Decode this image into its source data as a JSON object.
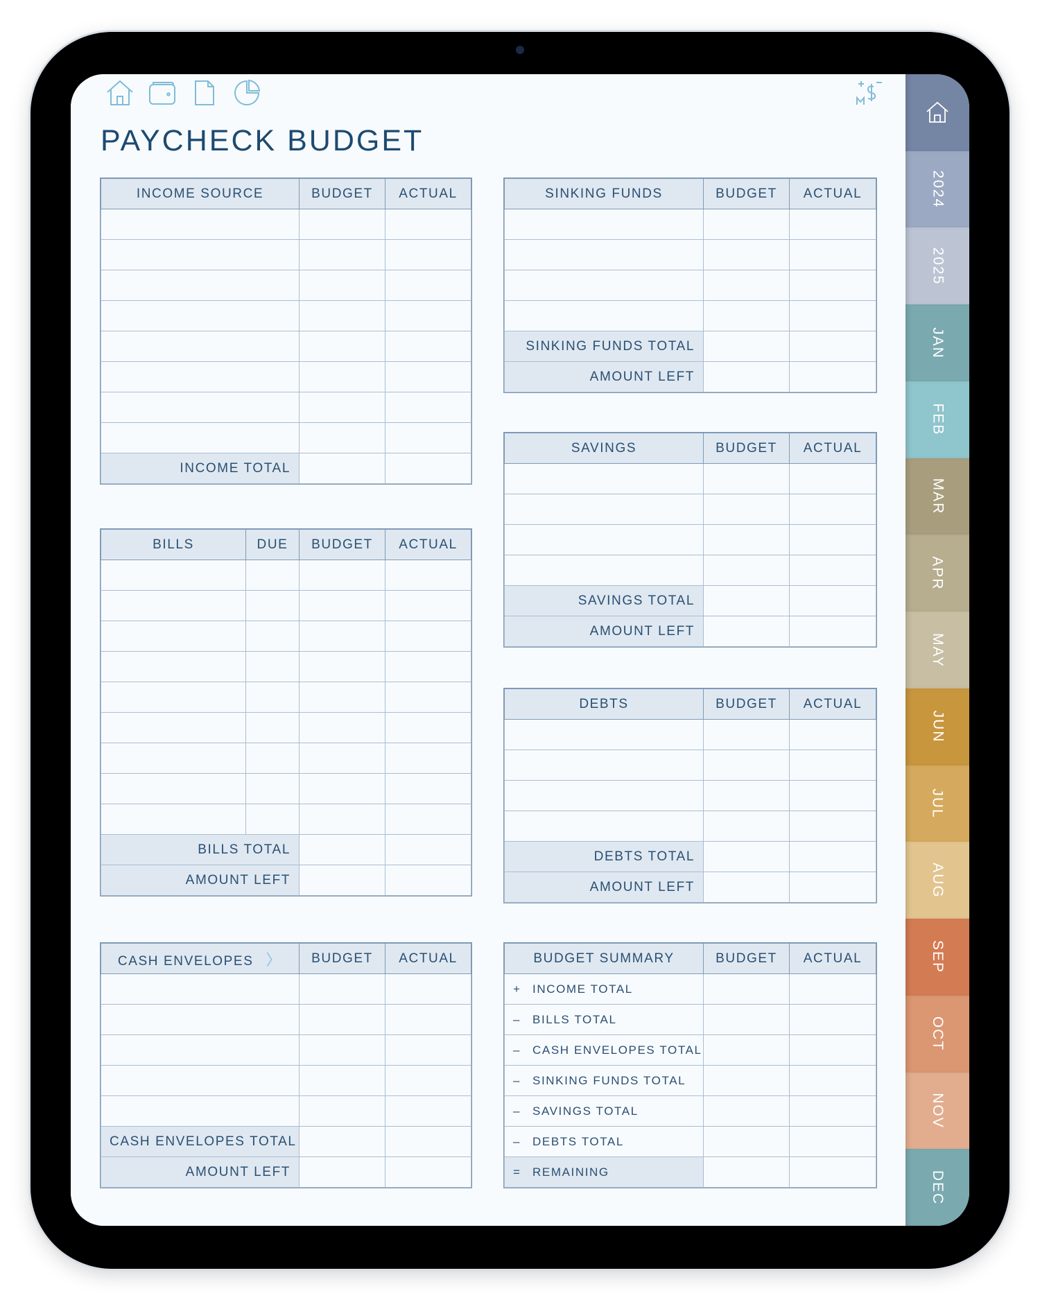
{
  "page": {
    "title": "PAYCHECK BUDGET"
  },
  "toolbar": {
    "icons": [
      "home-icon",
      "wallet-icon",
      "document-icon",
      "pie-chart-icon"
    ],
    "logo_text": "M$"
  },
  "tabs": [
    {
      "label": "",
      "icon": "home-icon",
      "color": "#7585a4"
    },
    {
      "label": "2024",
      "color": "#9ba9c3"
    },
    {
      "label": "2025",
      "color": "#bcc4d4"
    },
    {
      "label": "JAN",
      "color": "#7aa9b0"
    },
    {
      "label": "FEB",
      "color": "#8fc5cc"
    },
    {
      "label": "MAR",
      "color": "#a89e7e"
    },
    {
      "label": "APR",
      "color": "#b7ad8f"
    },
    {
      "label": "MAY",
      "color": "#c7bea3"
    },
    {
      "label": "JUN",
      "color": "#c8963d"
    },
    {
      "label": "JUL",
      "color": "#d5aa5e"
    },
    {
      "label": "AUG",
      "color": "#e2c48f"
    },
    {
      "label": "SEP",
      "color": "#d37b53"
    },
    {
      "label": "OCT",
      "color": "#db9672"
    },
    {
      "label": "NOV",
      "color": "#e2ad8e"
    },
    {
      "label": "DEC",
      "color": "#7aa9b0"
    }
  ],
  "tables": {
    "income": {
      "headers": [
        "INCOME SOURCE",
        "BUDGET",
        "ACTUAL"
      ],
      "totals": [
        "INCOME TOTAL"
      ]
    },
    "bills": {
      "headers": [
        "BILLS",
        "DUE",
        "BUDGET",
        "ACTUAL"
      ],
      "totals": [
        "BILLS TOTAL",
        "AMOUNT LEFT"
      ]
    },
    "cash": {
      "headers": [
        "CASH ENVELOPES",
        "BUDGET",
        "ACTUAL"
      ],
      "totals": [
        "CASH ENVELOPES TOTAL",
        "AMOUNT LEFT"
      ]
    },
    "sinking": {
      "headers": [
        "SINKING FUNDS",
        "BUDGET",
        "ACTUAL"
      ],
      "totals": [
        "SINKING FUNDS TOTAL",
        "AMOUNT LEFT"
      ]
    },
    "savings": {
      "headers": [
        "SAVINGS",
        "BUDGET",
        "ACTUAL"
      ],
      "totals": [
        "SAVINGS TOTAL",
        "AMOUNT LEFT"
      ]
    },
    "debts": {
      "headers": [
        "DEBTS",
        "BUDGET",
        "ACTUAL"
      ],
      "totals": [
        "DEBTS TOTAL",
        "AMOUNT LEFT"
      ]
    },
    "summary": {
      "headers": [
        "BUDGET SUMMARY",
        "BUDGET",
        "ACTUAL"
      ],
      "items": [
        {
          "op": "+",
          "label": "INCOME TOTAL"
        },
        {
          "op": "–",
          "label": "BILLS TOTAL"
        },
        {
          "op": "–",
          "label": "CASH ENVELOPES TOTAL"
        },
        {
          "op": "–",
          "label": "SINKING FUNDS TOTAL"
        },
        {
          "op": "–",
          "label": "SAVINGS TOTAL"
        },
        {
          "op": "–",
          "label": "DEBTS TOTAL"
        },
        {
          "op": "=",
          "label": "REMAINING"
        }
      ]
    }
  }
}
